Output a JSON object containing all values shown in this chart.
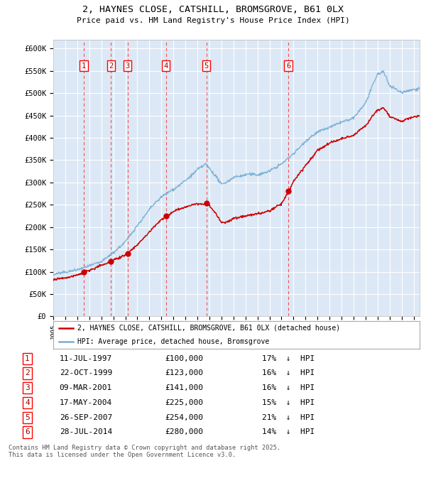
{
  "title1": "2, HAYNES CLOSE, CATSHILL, BROMSGROVE, B61 0LX",
  "title2": "Price paid vs. HM Land Registry's House Price Index (HPI)",
  "ylim": [
    0,
    620000
  ],
  "yticks": [
    0,
    50000,
    100000,
    150000,
    200000,
    250000,
    300000,
    350000,
    400000,
    450000,
    500000,
    550000,
    600000
  ],
  "ytick_labels": [
    "£0",
    "£50K",
    "£100K",
    "£150K",
    "£200K",
    "£250K",
    "£300K",
    "£350K",
    "£400K",
    "£450K",
    "£500K",
    "£550K",
    "£600K"
  ],
  "xlim_start": 1995.0,
  "xlim_end": 2025.5,
  "background_color": "#ffffff",
  "plot_bg_color": "#dce8f5",
  "grid_color": "#ffffff",
  "sale_color": "#cc0000",
  "hpi_color": "#7aafd4",
  "sale_label": "2, HAYNES CLOSE, CATSHILL, BROMSGROVE, B61 0LX (detached house)",
  "hpi_label": "HPI: Average price, detached house, Bromsgrove",
  "sales": [
    {
      "num": 1,
      "date_x": 1997.53,
      "price": 100000,
      "date_str": "11-JUL-1997",
      "pct": "17%",
      "dir": "↓"
    },
    {
      "num": 2,
      "date_x": 1999.81,
      "price": 123000,
      "date_str": "22-OCT-1999",
      "pct": "16%",
      "dir": "↓"
    },
    {
      "num": 3,
      "date_x": 2001.19,
      "price": 141000,
      "date_str": "09-MAR-2001",
      "pct": "16%",
      "dir": "↓"
    },
    {
      "num": 4,
      "date_x": 2004.38,
      "price": 225000,
      "date_str": "17-MAY-2004",
      "pct": "15%",
      "dir": "↓"
    },
    {
      "num": 5,
      "date_x": 2007.74,
      "price": 254000,
      "date_str": "26-SEP-2007",
      "pct": "21%",
      "dir": "↓"
    },
    {
      "num": 6,
      "date_x": 2014.57,
      "price": 280000,
      "date_str": "28-JUL-2014",
      "pct": "14%",
      "dir": "↓"
    }
  ],
  "footnote": "Contains HM Land Registry data © Crown copyright and database right 2025.\nThis data is licensed under the Open Government Licence v3.0."
}
